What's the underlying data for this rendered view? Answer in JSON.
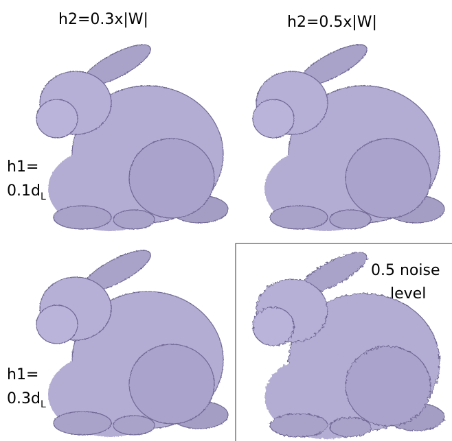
{
  "columns": [
    {
      "label": "h2=0.3x|W|"
    },
    {
      "label": "h2=0.5x|W|"
    }
  ],
  "rows": [
    {
      "label_line1": "h1=",
      "label_line2": "0.1d",
      "subscript": "L"
    },
    {
      "label_line1": "h1=",
      "label_line2": "0.3d",
      "subscript": "L"
    }
  ],
  "noisy_panel": {
    "label_line1": "0.5 noise",
    "label_line2": "level"
  }
}
